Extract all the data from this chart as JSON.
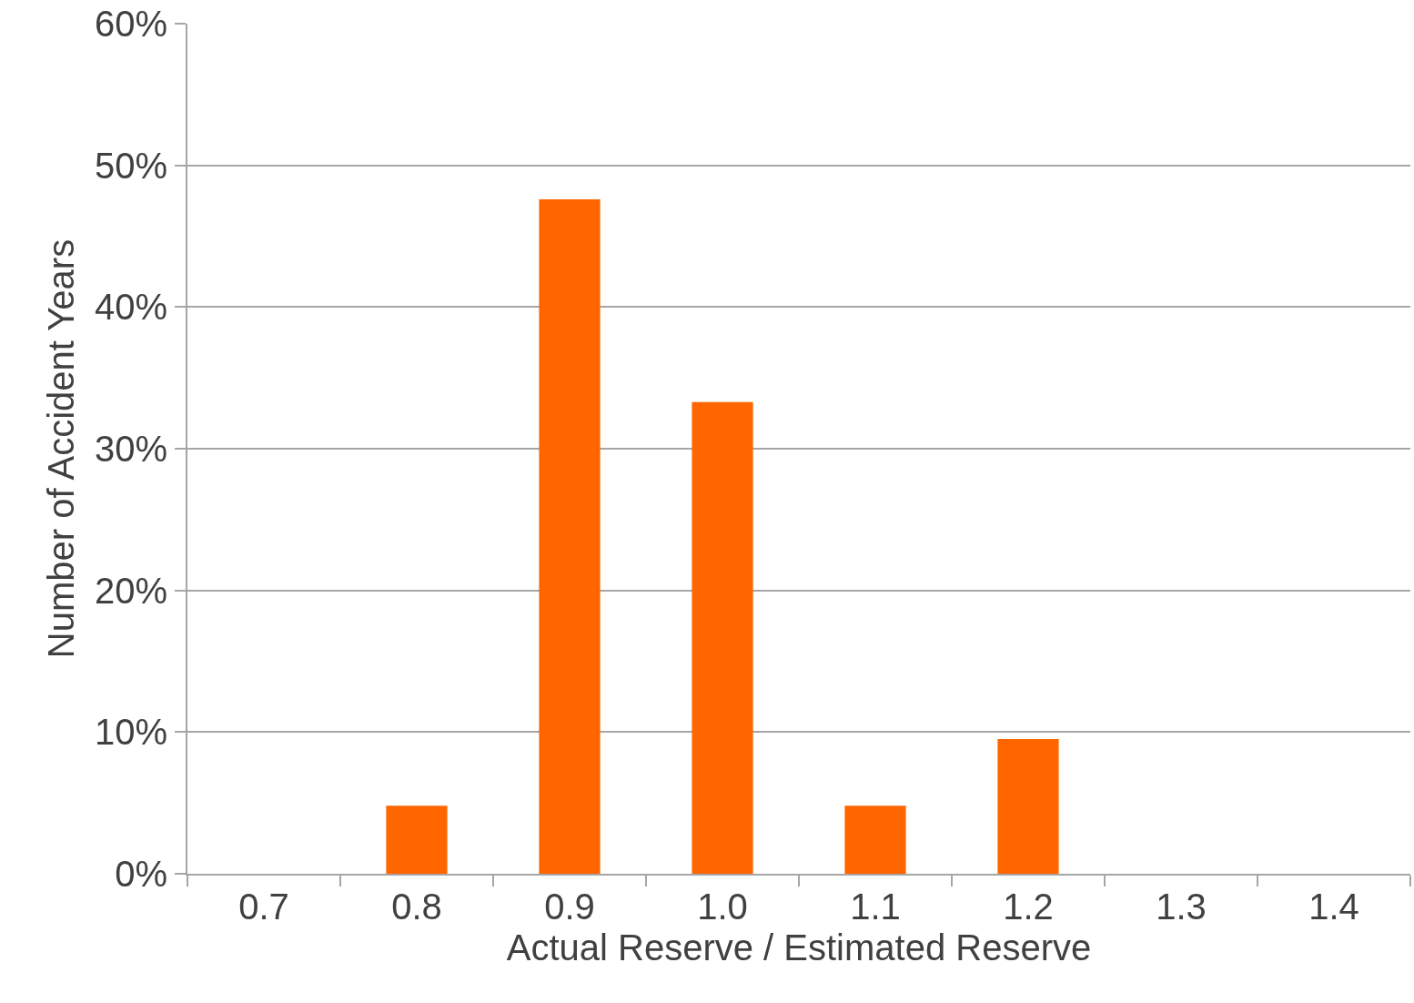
{
  "chart_data": {
    "type": "bar",
    "xlabel": "Actual Reserve / Estimated Reserve",
    "ylabel": "Number of Accident Years",
    "categories": [
      "0.7",
      "0.8",
      "0.9",
      "1.0",
      "1.1",
      "1.2",
      "1.3",
      "1.4"
    ],
    "values": [
      0,
      4.8,
      47.6,
      33.3,
      4.8,
      9.5,
      0,
      0
    ],
    "color": "#ff6600",
    "ylim": [
      0,
      60
    ],
    "yticks": [
      {
        "value": 0,
        "label": "0%"
      },
      {
        "value": 10,
        "label": "10%"
      },
      {
        "value": 20,
        "label": "20%"
      },
      {
        "value": 30,
        "label": "30%"
      },
      {
        "value": 40,
        "label": "40%"
      },
      {
        "value": 50,
        "label": "50%"
      },
      {
        "value": 60,
        "label": "60%"
      }
    ],
    "grid": "y",
    "legend": false
  }
}
